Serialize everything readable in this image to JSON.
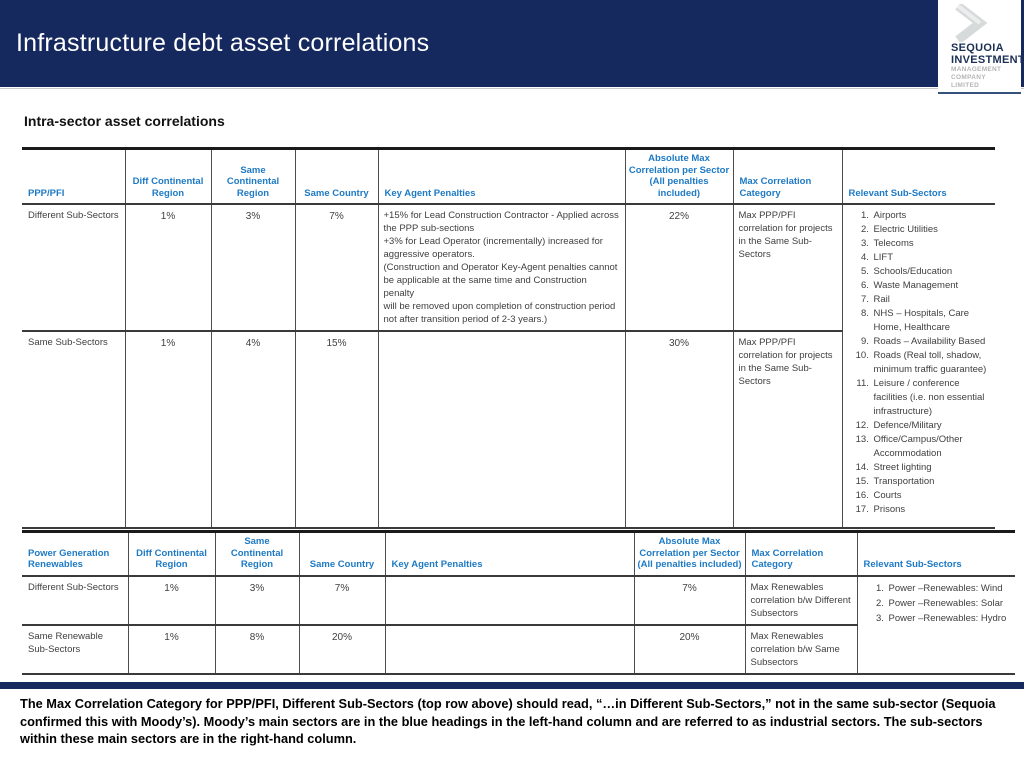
{
  "slide": {
    "title": "Infrastructure debt asset correlations",
    "section_title": "Intra-sector asset correlations"
  },
  "logo": {
    "chevron_icon": "chevron-right",
    "name_line1": "SEQUOIA",
    "name_line2": "INVESTMENT",
    "sub_line1": "MANAGEMENT",
    "sub_line2": "COMPANY",
    "sub_line3": "LIMITED"
  },
  "colors": {
    "navy": "#15295e",
    "table_header_blue": "#1e7ac4",
    "body_text": "#3f3f3f"
  },
  "table_ppp": {
    "headers": {
      "col1": "PPP/PFI",
      "col2": "Diff Continental Region",
      "col3": "Same Continental Region",
      "col4": "Same Country",
      "col5": "Key Agent Penalties",
      "col6": "Absolute Max Correlation per Sector (All penalties included)",
      "col7": "Max Correlation Category",
      "col8": "Relevant Sub-Sectors"
    },
    "rows": [
      {
        "label": "Different Sub-Sectors",
        "diff_continental": "1%",
        "same_continental": "3%",
        "same_country": "7%",
        "key_agent_penalties": "+15% for Lead Construction Contractor - Applied across the PPP sub-sections\n+3% for Lead Operator (incrementally) increased for aggressive operators.\n(Construction and Operator Key-Agent penalties cannot be applicable at the same time and Construction penalty\nwill be removed upon completion of construction period not after transition period of 2-3 years.)",
        "absolute_max": "22%",
        "max_correlation_category": "Max PPP/PFI correlation for projects in the Same Sub-Sectors"
      },
      {
        "label": "Same Sub-Sectors",
        "diff_continental": "1%",
        "same_continental": "4%",
        "same_country": "15%",
        "key_agent_penalties": "",
        "absolute_max": "30%",
        "max_correlation_category": "Max PPP/PFI correlation for projects in the Same Sub-Sectors"
      }
    ],
    "relevant_subsectors": [
      "Airports",
      "Electric Utilities",
      "Telecoms",
      "LIFT",
      "Schools/Education",
      "Waste Management",
      "Rail",
      "NHS – Hospitals, Care Home, Healthcare",
      "Roads – Availability Based",
      "Roads (Real toll, shadow, minimum traffic guarantee)",
      "Leisure / conference facilities (i.e. non essential infrastructure)",
      "Defence/Military",
      "Office/Campus/Other Accommodation",
      "Street lighting",
      "Transportation",
      "Courts",
      "Prisons"
    ]
  },
  "table_renewables": {
    "headers": {
      "col1": "Power Generation Renewables",
      "col2": "Diff Continental Region",
      "col3": "Same Continental Region",
      "col4": "Same Country",
      "col5": "Key Agent Penalties",
      "col6": "Absolute Max Correlation per Sector (All penalties included)",
      "col7": "Max Correlation Category",
      "col8": "Relevant Sub-Sectors"
    },
    "rows": [
      {
        "label": "Different Sub-Sectors",
        "diff_continental": "1%",
        "same_continental": "3%",
        "same_country": "7%",
        "key_agent_penalties": "",
        "absolute_max": "7%",
        "max_correlation_category": "Max Renewables correlation b/w Different Subsectors"
      },
      {
        "label": "Same Renewable Sub-Sectors",
        "diff_continental": "1%",
        "same_continental": "8%",
        "same_country": "20%",
        "key_agent_penalties": "",
        "absolute_max": "20%",
        "max_correlation_category": "Max Renewables correlation b/w Same Subsectors"
      }
    ],
    "relevant_subsectors": [
      "Power –Renewables: Wind",
      "Power –Renewables: Solar",
      "Power –Renewables: Hydro"
    ]
  },
  "footer": {
    "note": "The Max Correlation Category for PPP/PFI, Different Sub-Sectors (top row above) should read, “…in Different Sub-Sectors,” not in the same sub-sector (Sequoia confirmed this with Moody’s). Moody’s main sectors are in the blue headings in the left-hand column and are referred to as industrial sectors. The sub-sectors within these main sectors are in the right-hand column."
  }
}
